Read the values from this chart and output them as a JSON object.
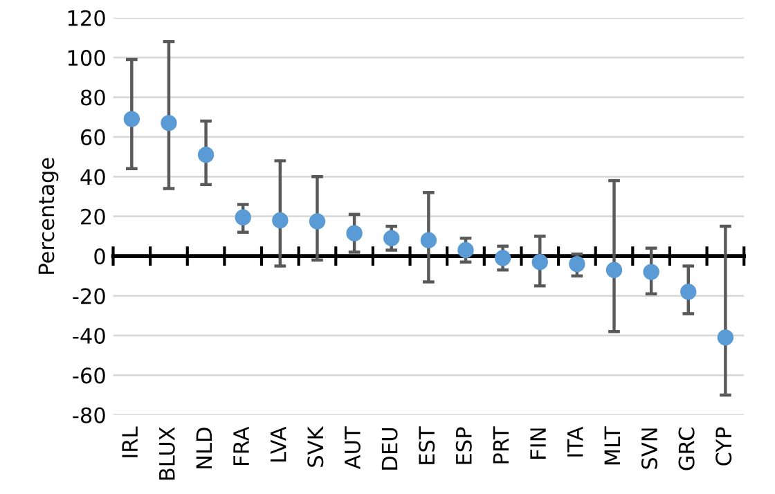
{
  "chart_data": {
    "type": "scatter",
    "ylabel": "Percentage",
    "categories": [
      "IRL",
      "BLUX",
      "NLD",
      "FRA",
      "LVA",
      "SVK",
      "AUT",
      "DEU",
      "EST",
      "ESP",
      "PRT",
      "FIN",
      "ITA",
      "MLT",
      "SVN",
      "GRC",
      "CYP"
    ],
    "series": [
      {
        "color": "#5b9bd5",
        "values": [
          69,
          67,
          51,
          19.5,
          18,
          17.5,
          11.5,
          9,
          8,
          3,
          -1,
          -3,
          -4,
          -7,
          -8,
          -18,
          -41
        ],
        "errors": [
          [
            44,
            99
          ],
          [
            34,
            108
          ],
          [
            36,
            68
          ],
          [
            12,
            26
          ],
          [
            -5,
            48
          ],
          [
            -2,
            40
          ],
          [
            2,
            21
          ],
          [
            3,
            15
          ],
          [
            -13,
            32
          ],
          [
            -3,
            9
          ],
          [
            -7,
            5
          ],
          [
            -15,
            10
          ],
          [
            -10,
            1
          ],
          [
            -38,
            38
          ],
          [
            -19,
            4
          ],
          [
            -29,
            -5
          ],
          [
            -70,
            15
          ]
        ]
      }
    ],
    "ylim": [
      -80,
      120
    ],
    "yticks": [
      -80,
      -60,
      -40,
      -20,
      0,
      20,
      40,
      60,
      80,
      100,
      120
    ],
    "grid": "y",
    "marker": "circle"
  }
}
